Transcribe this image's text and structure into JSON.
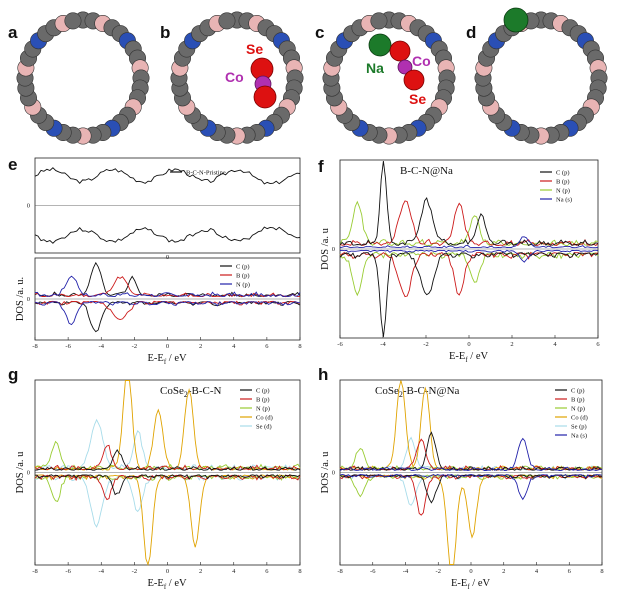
{
  "panel_labels": {
    "a": "a",
    "b": "b",
    "c": "c",
    "d": "d",
    "e": "e",
    "f": "f",
    "g": "g",
    "h": "h"
  },
  "structures": {
    "b_labels": {
      "se": "Se",
      "co": "Co"
    },
    "c_labels": {
      "na": "Na",
      "co": "Co",
      "se": "Se"
    }
  },
  "dos_panels": {
    "e_top": {
      "legend": [
        "B-C-N-Pristine"
      ],
      "ytick": "0",
      "xtick": "0"
    },
    "e_bot": {
      "legend": [
        "C (p)",
        "B (p)",
        "N (p)"
      ],
      "ytick": "0",
      "ylabel": "DOS /a. u.",
      "xlabel": "E-E",
      "xlabel_sub": "f",
      "xlabel_tail": " / eV"
    },
    "f": {
      "title": "B-C-N@Na",
      "legend": [
        "C (p)",
        "B (p)",
        "N (p)",
        "Na (s)"
      ],
      "ytick": "0",
      "ylabel": "DOS /a. u",
      "xlabel": "E-E",
      "xlabel_sub": "f",
      "xlabel_tail": " / eV"
    },
    "g": {
      "title": "CoSe",
      "title_sub": "2",
      "title_tail": "-B-C-N",
      "legend": [
        "C (p)",
        "B (p)",
        "N (p)",
        "Co (d)",
        "Se (d)"
      ],
      "ytick": "0",
      "ylabel": "DOS /a. u",
      "xlabel": "E-E",
      "xlabel_sub": "f",
      "xlabel_tail": " / eV"
    },
    "h": {
      "title": "CoSe",
      "title_sub": "2",
      "title_tail": "-B-C-N@Na",
      "legend": [
        "C (p)",
        "B (p)",
        "N (p)",
        "Co (d)",
        "Se (p)",
        "Na (s)"
      ],
      "ytick": "0",
      "ylabel": "DOS /a. u",
      "xlabel": "E-E",
      "xlabel_sub": "f",
      "xlabel_tail": " / eV"
    }
  },
  "colors": {
    "C": "#111111",
    "B": "#cc1a1a",
    "N": "#99cc33",
    "Na": "#2222aa",
    "Co": "#e0a300",
    "Se": "#a8dcea",
    "carbon_atom": "#6a6a6a",
    "boron_atom": "#e8b4b4",
    "nitrogen_atom": "#2a4fb5",
    "se_atom": "#dd1111",
    "co_atom": "#b030b0",
    "na_atom": "#1c7a2a"
  },
  "chart_data": [
    {
      "panel": "e",
      "type": "line",
      "x_range": [
        -8,
        8
      ],
      "xticks": [
        "-8",
        "-6",
        "-4",
        "-2",
        "0",
        "2",
        "4",
        "6",
        "8"
      ],
      "series": [
        {
          "name": "B-C-N-Pristine"
        },
        {
          "name": "C (p)"
        },
        {
          "name": "B (p)"
        },
        {
          "name": "N (p)"
        }
      ]
    },
    {
      "panel": "f",
      "type": "line",
      "x_range": [
        -6,
        6
      ],
      "xticks": [
        "-6",
        "-4",
        "-2",
        "0",
        "2",
        "4",
        "6"
      ],
      "series": [
        {
          "name": "C (p)"
        },
        {
          "name": "B (p)"
        },
        {
          "name": "N (p)"
        },
        {
          "name": "Na (s)"
        }
      ]
    },
    {
      "panel": "g",
      "type": "line",
      "x_range": [
        -8,
        8
      ],
      "xticks": [
        "-8",
        "-6",
        "-4",
        "-2",
        "0",
        "2",
        "4",
        "6",
        "8"
      ],
      "series": [
        {
          "name": "C (p)"
        },
        {
          "name": "B (p)"
        },
        {
          "name": "N (p)"
        },
        {
          "name": "Co (d)"
        },
        {
          "name": "Se (d)"
        }
      ]
    },
    {
      "panel": "h",
      "type": "line",
      "x_range": [
        -8,
        8
      ],
      "xticks": [
        "-8",
        "-6",
        "-4",
        "-2",
        "0",
        "2",
        "4",
        "6",
        "8"
      ],
      "series": [
        {
          "name": "C (p)"
        },
        {
          "name": "B (p)"
        },
        {
          "name": "N (p)"
        },
        {
          "name": "Co (d)"
        },
        {
          "name": "Se (p)"
        },
        {
          "name": "Na (s)"
        }
      ]
    }
  ]
}
